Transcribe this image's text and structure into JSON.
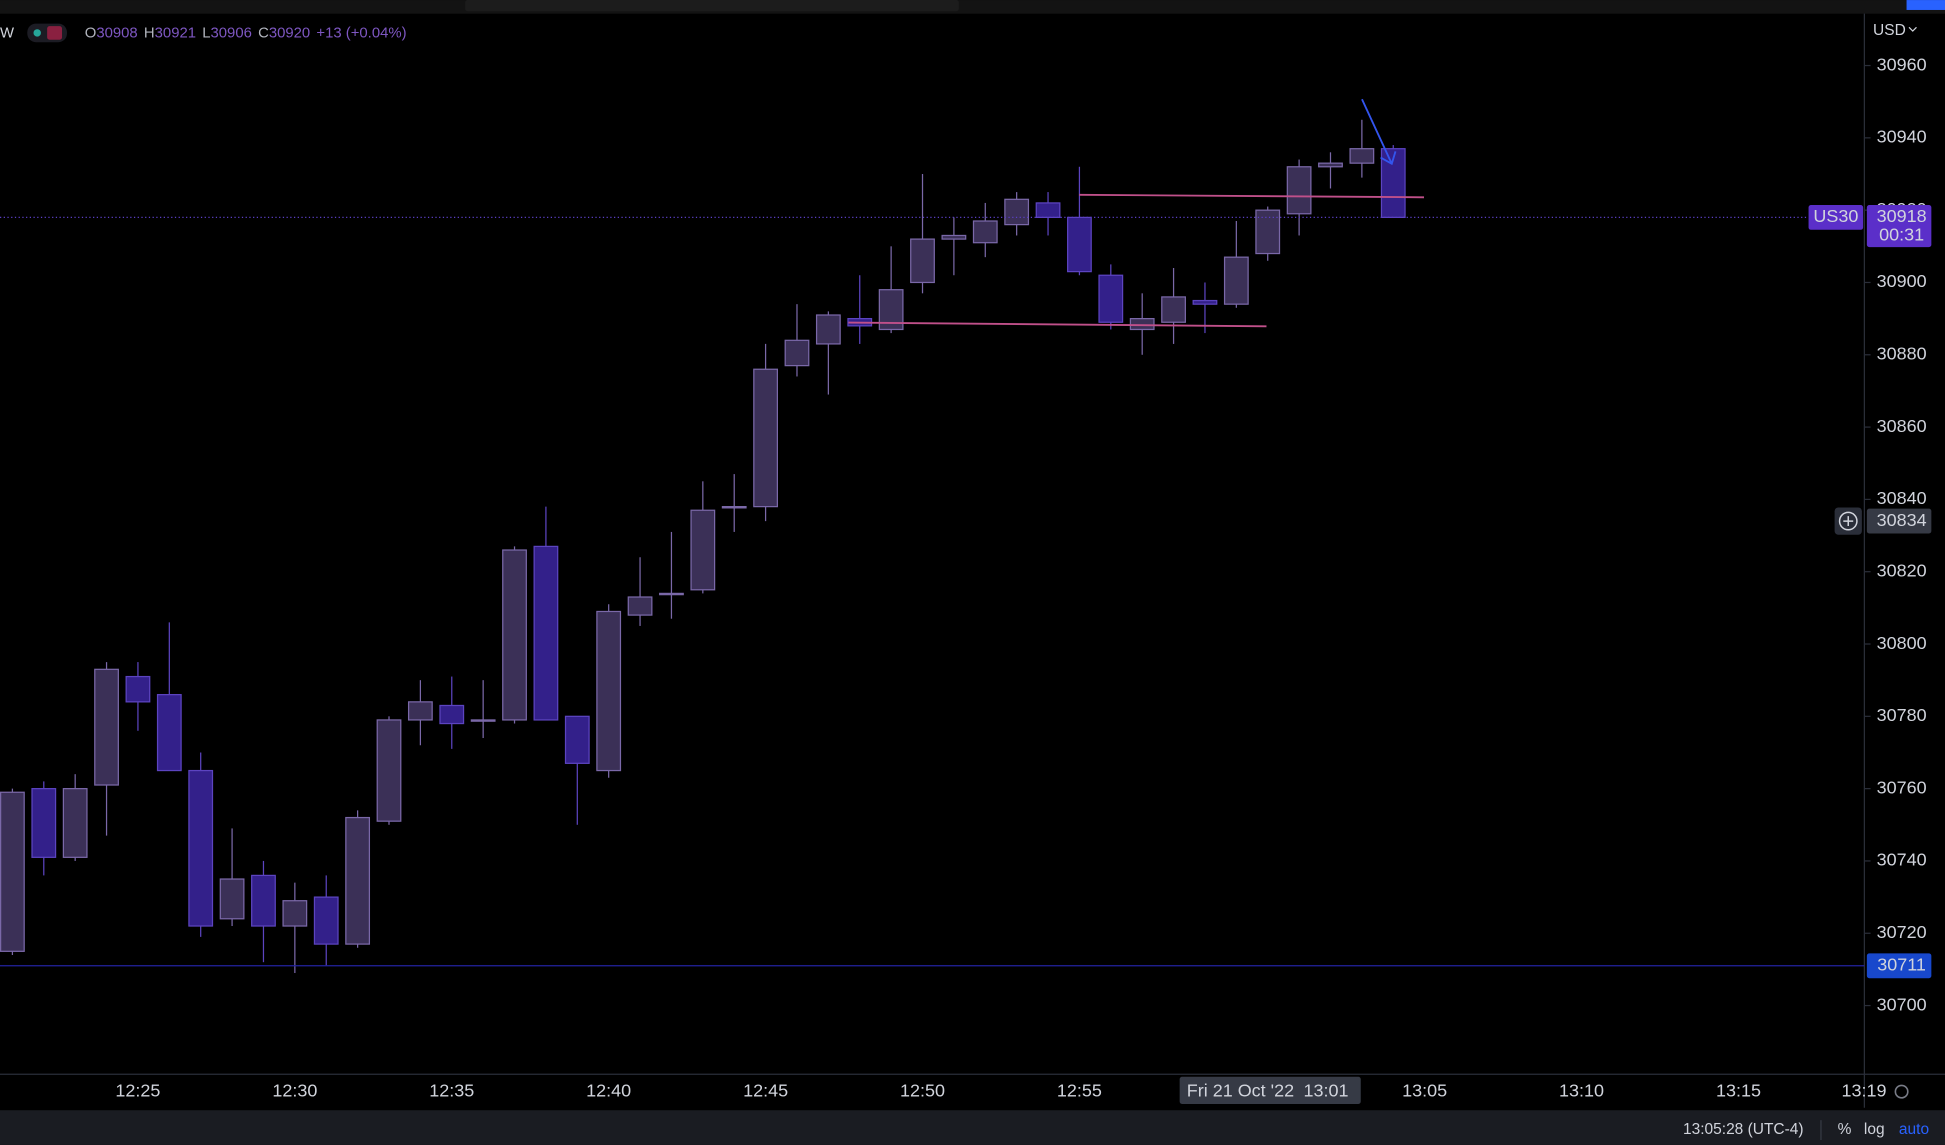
{
  "top_bar": {
    "currency": "USD"
  },
  "legend": {
    "symbol": "W",
    "items": [
      {
        "label": "O",
        "value": 30908
      },
      {
        "label": "H",
        "value": 30921
      },
      {
        "label": "L",
        "value": 30906
      },
      {
        "label": "C",
        "value": 30920
      }
    ],
    "change": "+13 (+0.04%)"
  },
  "chart_data": {
    "type": "candlestick",
    "categories": [
      null,
      null,
      null,
      null,
      "12:25",
      null,
      null,
      null,
      null,
      "12:30",
      null,
      null,
      null,
      null,
      "12:35",
      null,
      null,
      null,
      null,
      "12:40",
      null,
      null,
      null,
      null,
      "12:45",
      null,
      null,
      null,
      null,
      "12:50",
      null,
      null,
      null,
      null,
      "12:55",
      null,
      null,
      null,
      null,
      null,
      null,
      null,
      null,
      null,
      null,
      "13:05",
      null,
      null,
      null,
      null,
      "13:10",
      null,
      null,
      null,
      null,
      "13:15",
      null,
      null,
      null,
      "13:19"
    ],
    "series": [
      {
        "name": "US30",
        "up_color": "#3b3057",
        "up_border": "#7a68a8",
        "down_color": "#33208a",
        "down_border": "#5c44c0",
        "open": [
          30715,
          30760,
          30741,
          30761,
          30791,
          30786,
          30765,
          30724,
          30736,
          30722,
          30730,
          30717,
          30751,
          30779,
          30783,
          30779,
          30779,
          30827,
          30780,
          30765,
          30808,
          30814,
          30815,
          30838,
          30838,
          30877,
          30883,
          30890,
          30887,
          30900,
          30912,
          30911,
          30916,
          30922,
          30918,
          30902,
          30887,
          30889,
          30895,
          30894,
          30908,
          30919,
          30932,
          30933,
          30937,
          null,
          null,
          null,
          null,
          null,
          null,
          null,
          null,
          null,
          null,
          null,
          null,
          null,
          null
        ],
        "high": [
          30760,
          30762,
          30764,
          30795,
          30795,
          30806,
          30770,
          30749,
          30740,
          30734,
          30736,
          30754,
          30780,
          30790,
          30791,
          30790,
          30827,
          30838,
          30780,
          30811,
          30824,
          30831,
          30845,
          30847,
          30883,
          30894,
          30892,
          30902,
          30910,
          30930,
          30918,
          30922,
          30925,
          30925,
          30932,
          30905,
          30897,
          30904,
          30900,
          30917,
          30921,
          30934,
          30936,
          30945,
          30938,
          null,
          null,
          null,
          null,
          null,
          null,
          null,
          null,
          null,
          null,
          null,
          null,
          null,
          null
        ],
        "low": [
          30714,
          30736,
          30740,
          30747,
          30776,
          30765,
          30719,
          30722,
          30712,
          30709,
          30711,
          30716,
          30750,
          30772,
          30771,
          30774,
          30778,
          30779,
          30750,
          30763,
          30805,
          30807,
          30814,
          30831,
          30834,
          30874,
          30869,
          30883,
          30886,
          30897,
          30902,
          30907,
          30913,
          30913,
          30902,
          30887,
          30880,
          30883,
          30886,
          30893,
          30906,
          30913,
          30926,
          30929,
          30918,
          null,
          null,
          null,
          null,
          null,
          null,
          null,
          null,
          null,
          null,
          null,
          null,
          null,
          null
        ],
        "close": [
          30759,
          30741,
          30760,
          30793,
          30784,
          30765,
          30722,
          30735,
          30722,
          30729,
          30717,
          30752,
          30779,
          30784,
          30778,
          30779,
          30826,
          30779,
          30767,
          30809,
          30813,
          30814,
          30837,
          30838,
          30876,
          30884,
          30891,
          30888,
          30898,
          30912,
          30913,
          30917,
          30923,
          30918,
          30903,
          30889,
          30890,
          30896,
          30894,
          30907,
          30920,
          30932,
          30933,
          30937,
          30918,
          null,
          null,
          null,
          null,
          null,
          null,
          null,
          null,
          null,
          null,
          null,
          null,
          null,
          null
        ]
      }
    ],
    "ylim": [
      30681,
      30974
    ],
    "yticks": [
      30700,
      30720,
      30740,
      30760,
      30780,
      30800,
      30820,
      30840,
      30860,
      30880,
      30900,
      30920,
      30940,
      30960
    ],
    "last_price": 30918,
    "countdown": "00:31",
    "price_line": 30711,
    "crosshair_price": 30834,
    "crosshair_date": "Fri 21 Oct '22",
    "crosshair_time": "13:01"
  },
  "status_bar": {
    "time": "13:05:28 (UTC-4)",
    "percent": "%",
    "log": "log",
    "auto": "auto"
  }
}
